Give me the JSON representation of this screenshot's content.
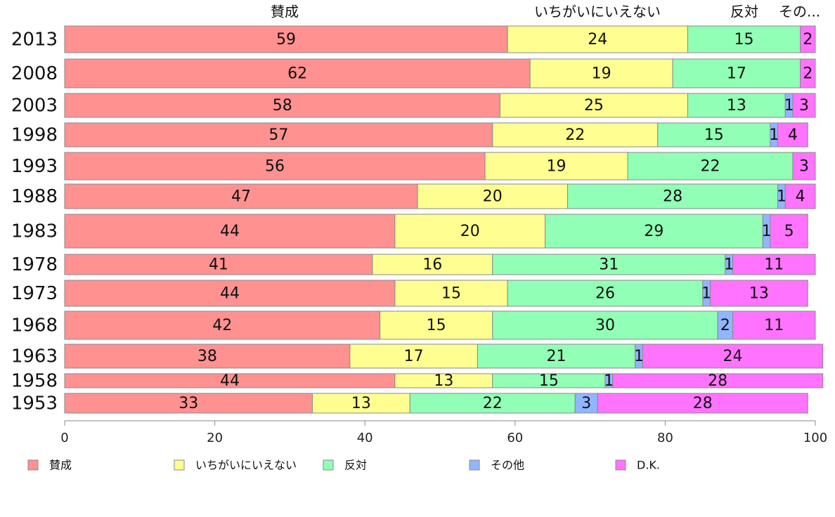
{
  "chart_data": {
    "type": "bar",
    "orientation": "horizontal",
    "stacked": true,
    "categories": [
      "2013",
      "2008",
      "2003",
      "1998",
      "1993",
      "1988",
      "1983",
      "1978",
      "1973",
      "1968",
      "1963",
      "1958",
      "1953"
    ],
    "series": [
      {
        "name": "賛成",
        "color": "#ff9191",
        "values": [
          59,
          62,
          58,
          57,
          56,
          47,
          44,
          41,
          44,
          42,
          38,
          44,
          33
        ]
      },
      {
        "name": "いちがいにいえない",
        "color": "#ffff91",
        "values": [
          24,
          19,
          25,
          22,
          19,
          20,
          20,
          16,
          15,
          15,
          17,
          13,
          13
        ]
      },
      {
        "name": "反対",
        "color": "#91ffb5",
        "values": [
          15,
          17,
          13,
          15,
          22,
          28,
          29,
          31,
          26,
          30,
          21,
          15,
          22
        ]
      },
      {
        "name": "その他",
        "color": "#91b5ff",
        "values": [
          0,
          0,
          1,
          1,
          0,
          1,
          1,
          1,
          1,
          2,
          1,
          1,
          3
        ]
      },
      {
        "name": "D.K.",
        "color": "#ff73ff",
        "values": [
          2,
          2,
          3,
          4,
          3,
          4,
          5,
          11,
          13,
          11,
          24,
          28,
          28
        ]
      }
    ],
    "header_labels": [
      "賛成",
      "いちがいにいえない",
      "反対",
      "その..."
    ],
    "x_ticks": [
      0,
      20,
      40,
      60,
      80,
      100
    ],
    "xlim": [
      0,
      100
    ],
    "legend_position": "bottom",
    "grid": false
  }
}
